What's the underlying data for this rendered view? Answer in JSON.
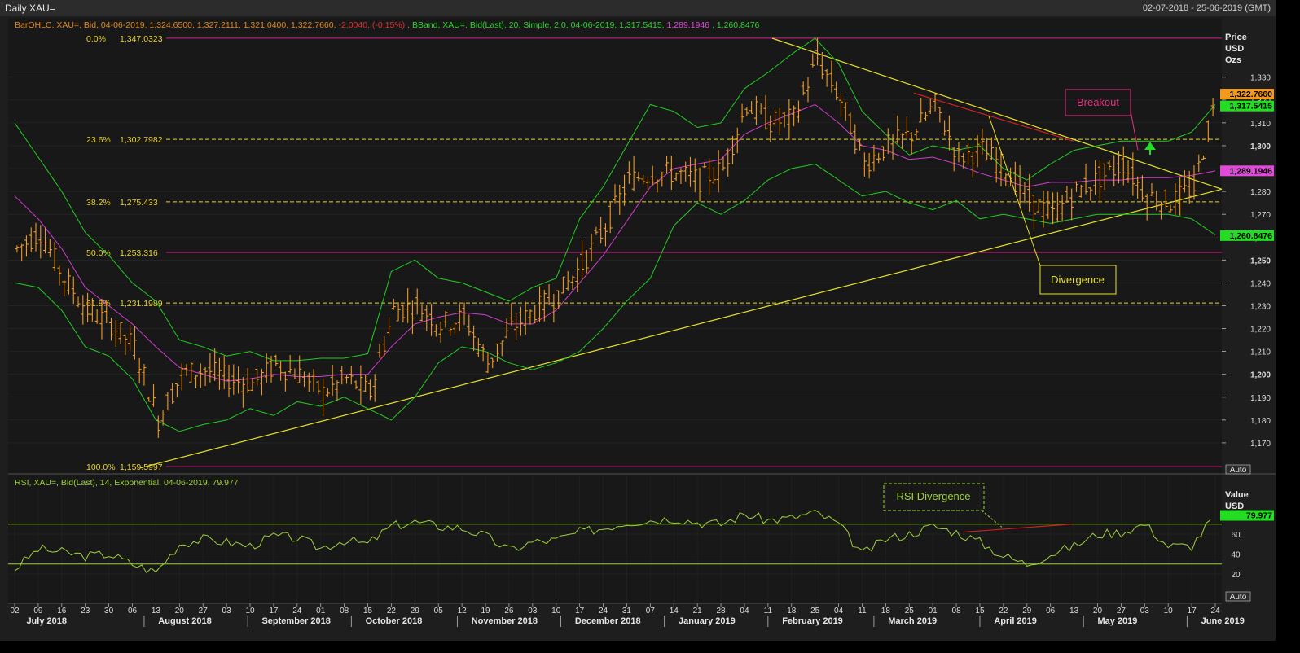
{
  "window": {
    "title": "Daily XAU=",
    "date_range": "02-07-2018 - 25-06-2019 (GMT)"
  },
  "legend": {
    "ohlc": "BarOHLC, XAU=, Bid, 04-06-2019, 1,324.6500, 1,327.2111, 1,321.0400, 1,322.7660, ",
    "change": "-2.0040, (-0.15%)",
    "sep": ", ",
    "bband": "BBand, XAU=, Bid(Last), 20, Simple, 2.0, 04-06-2019, 1,317.5415, ",
    "bband_mid": "1,289.1946",
    "bband_low": ", 1,260.8476",
    "rsi": "RSI, XAU=, Bid(Last), 14, Exponential, 04-06-2019, 79.977"
  },
  "axes": {
    "price_title": [
      "Price",
      "USD",
      "Ozs"
    ],
    "rsi_title": [
      "Value",
      "USD"
    ],
    "price_ticks": [
      "1,170",
      "1,180",
      "1,190",
      "1,200",
      "1,210",
      "1,220",
      "1,230",
      "1,240",
      "1,250",
      "1,260",
      "1,270",
      "1,280",
      "1,290",
      "1,300",
      "1,310",
      "1,320",
      "1,330"
    ],
    "price_tick_values": [
      1170,
      1180,
      1190,
      1200,
      1210,
      1220,
      1230,
      1240,
      1250,
      1260,
      1270,
      1280,
      1290,
      1300,
      1310,
      1320,
      1330
    ],
    "rsi_ticks": [
      "20",
      "40",
      "60"
    ],
    "rsi_tick_values": [
      20,
      40,
      60
    ],
    "day_labels": [
      "02",
      "09",
      "16",
      "23",
      "30",
      "06",
      "13",
      "20",
      "27",
      "03",
      "10",
      "17",
      "24",
      "01",
      "08",
      "15",
      "22",
      "29",
      "05",
      "12",
      "19",
      "26",
      "03",
      "10",
      "17",
      "24",
      "31",
      "07",
      "14",
      "21",
      "28",
      "04",
      "11",
      "18",
      "25",
      "04",
      "11",
      "18",
      "25",
      "01",
      "08",
      "15",
      "22",
      "29",
      "06",
      "13",
      "20",
      "27",
      "03",
      "10",
      "17",
      "24"
    ],
    "month_labels": [
      "July 2018",
      "August 2018",
      "September 2018",
      "October 2018",
      "November 2018",
      "December 2018",
      "January 2019",
      "February 2019",
      "March 2019",
      "April 2019",
      "May 2019",
      "June 2019"
    ],
    "month_label_index": [
      0.5,
      6.1,
      10.5,
      14.9,
      19.4,
      23.8,
      28.2,
      32.6,
      37.1,
      41.6,
      46.0,
      50.4
    ]
  },
  "badges": [
    {
      "label": "1,322.7660",
      "value": 1322.766,
      "bg": "#f29a1c",
      "fg": "#000000"
    },
    {
      "label": "1,317.5415",
      "value": 1317.5415,
      "bg": "#22dd22",
      "fg": "#000000"
    },
    {
      "label": "1,289.1946",
      "value": 1289.1946,
      "bg": "#e04ad8",
      "fg": "#000000"
    },
    {
      "label": "1,260.8476",
      "value": 1260.8476,
      "bg": "#22dd22",
      "fg": "#000000"
    }
  ],
  "rsi_badge": {
    "label": "79.977",
    "value": 79.977,
    "bg": "#22dd22",
    "fg": "#000000"
  },
  "buttons": {
    "auto": "Auto"
  },
  "colors": {
    "ohlc": "#f29a1c",
    "bband_outer": "#22cc22",
    "bband_mid": "#d23cd0",
    "fib_dash": "#e8d22a",
    "fib_solid": "#d61f8a",
    "trend": "#e6e02a",
    "red_line": "#cc2222",
    "rsi": "#9ed23a",
    "rsi_levels": "#9ed23a",
    "annotation_breakout": "#e0337f",
    "annotation_divergence": "#e6e02a",
    "annotation_rsi": "#9ed23a",
    "arrow": "#22dd22"
  },
  "chart_data": {
    "type": "ohlc-bar",
    "instrument": "XAU=",
    "ylim": [
      1160,
      1347
    ],
    "fibonacci": [
      {
        "pct": "0.0%",
        "value_label": "1,347.0323",
        "value": 1347.0323,
        "style": "solid"
      },
      {
        "pct": "23.6%",
        "value_label": "1,302.7982",
        "value": 1302.7982,
        "style": "dashed"
      },
      {
        "pct": "38.2%",
        "value_label": "1,275.433",
        "value": 1275.433,
        "style": "dashed"
      },
      {
        "pct": "50.0%",
        "value_label": "1,253.316",
        "value": 1253.316,
        "style": "solid"
      },
      {
        "pct": "61.8%",
        "value_label": "1,231.1989",
        "value": 1231.1989,
        "style": "dashed"
      },
      {
        "pct": "100.0%",
        "value_label": "1,159.5997",
        "value": 1159.5997,
        "style": "solid"
      }
    ],
    "close_path_weekly": [
      1255,
      1262,
      1242,
      1228,
      1222,
      1212,
      1180,
      1200,
      1202,
      1198,
      1196,
      1204,
      1200,
      1192,
      1198,
      1192,
      1228,
      1230,
      1222,
      1225,
      1205,
      1220,
      1228,
      1235,
      1248,
      1265,
      1285,
      1288,
      1288,
      1285,
      1290,
      1318,
      1310,
      1312,
      1338,
      1320,
      1292,
      1300,
      1305,
      1318,
      1295,
      1298,
      1290,
      1276,
      1270,
      1280,
      1286,
      1292,
      1278,
      1275,
      1282,
      1323
    ],
    "bb_upper_weekly": [
      1310,
      1295,
      1280,
      1262,
      1252,
      1240,
      1232,
      1215,
      1212,
      1208,
      1210,
      1206,
      1206,
      1207,
      1207,
      1209,
      1245,
      1250,
      1242,
      1240,
      1236,
      1232,
      1238,
      1242,
      1268,
      1282,
      1300,
      1318,
      1315,
      1308,
      1310,
      1325,
      1332,
      1340,
      1347,
      1336,
      1315,
      1305,
      1296,
      1300,
      1298,
      1300,
      1290,
      1285,
      1292,
      1298,
      1300,
      1302,
      1302,
      1302,
      1306,
      1318
    ],
    "bb_mid_weekly": [
      1278,
      1268,
      1255,
      1238,
      1230,
      1222,
      1212,
      1203,
      1200,
      1197,
      1198,
      1200,
      1199,
      1199,
      1200,
      1200,
      1212,
      1222,
      1225,
      1227,
      1226,
      1222,
      1222,
      1228,
      1240,
      1252,
      1267,
      1282,
      1290,
      1292,
      1294,
      1305,
      1310,
      1314,
      1318,
      1310,
      1300,
      1298,
      1294,
      1295,
      1292,
      1288,
      1285,
      1282,
      1284,
      1284,
      1285,
      1285,
      1286,
      1286,
      1287,
      1289
    ],
    "bb_lower_weekly": [
      1240,
      1238,
      1228,
      1212,
      1208,
      1198,
      1180,
      1175,
      1178,
      1180,
      1185,
      1182,
      1188,
      1186,
      1190,
      1185,
      1180,
      1190,
      1205,
      1212,
      1210,
      1205,
      1202,
      1205,
      1210,
      1220,
      1232,
      1242,
      1265,
      1275,
      1270,
      1276,
      1285,
      1290,
      1292,
      1285,
      1278,
      1280,
      1275,
      1272,
      1276,
      1268,
      1270,
      1268,
      1266,
      1268,
      1270,
      1270,
      1270,
      1270,
      1268,
      1261
    ],
    "rsi_weekly": [
      25,
      45,
      42,
      38,
      40,
      30,
      22,
      50,
      55,
      52,
      48,
      58,
      56,
      46,
      54,
      50,
      68,
      72,
      68,
      66,
      58,
      44,
      52,
      54,
      62,
      66,
      72,
      74,
      76,
      72,
      70,
      80,
      74,
      76,
      82,
      70,
      40,
      55,
      60,
      68,
      62,
      52,
      38,
      30,
      40,
      48,
      60,
      62,
      70,
      48,
      48,
      80
    ],
    "rsi_levels": [
      70,
      30
    ],
    "annotations": {
      "breakout": "Breakout",
      "divergence": "Divergence",
      "rsi_divergence": "RSI Divergence"
    }
  }
}
